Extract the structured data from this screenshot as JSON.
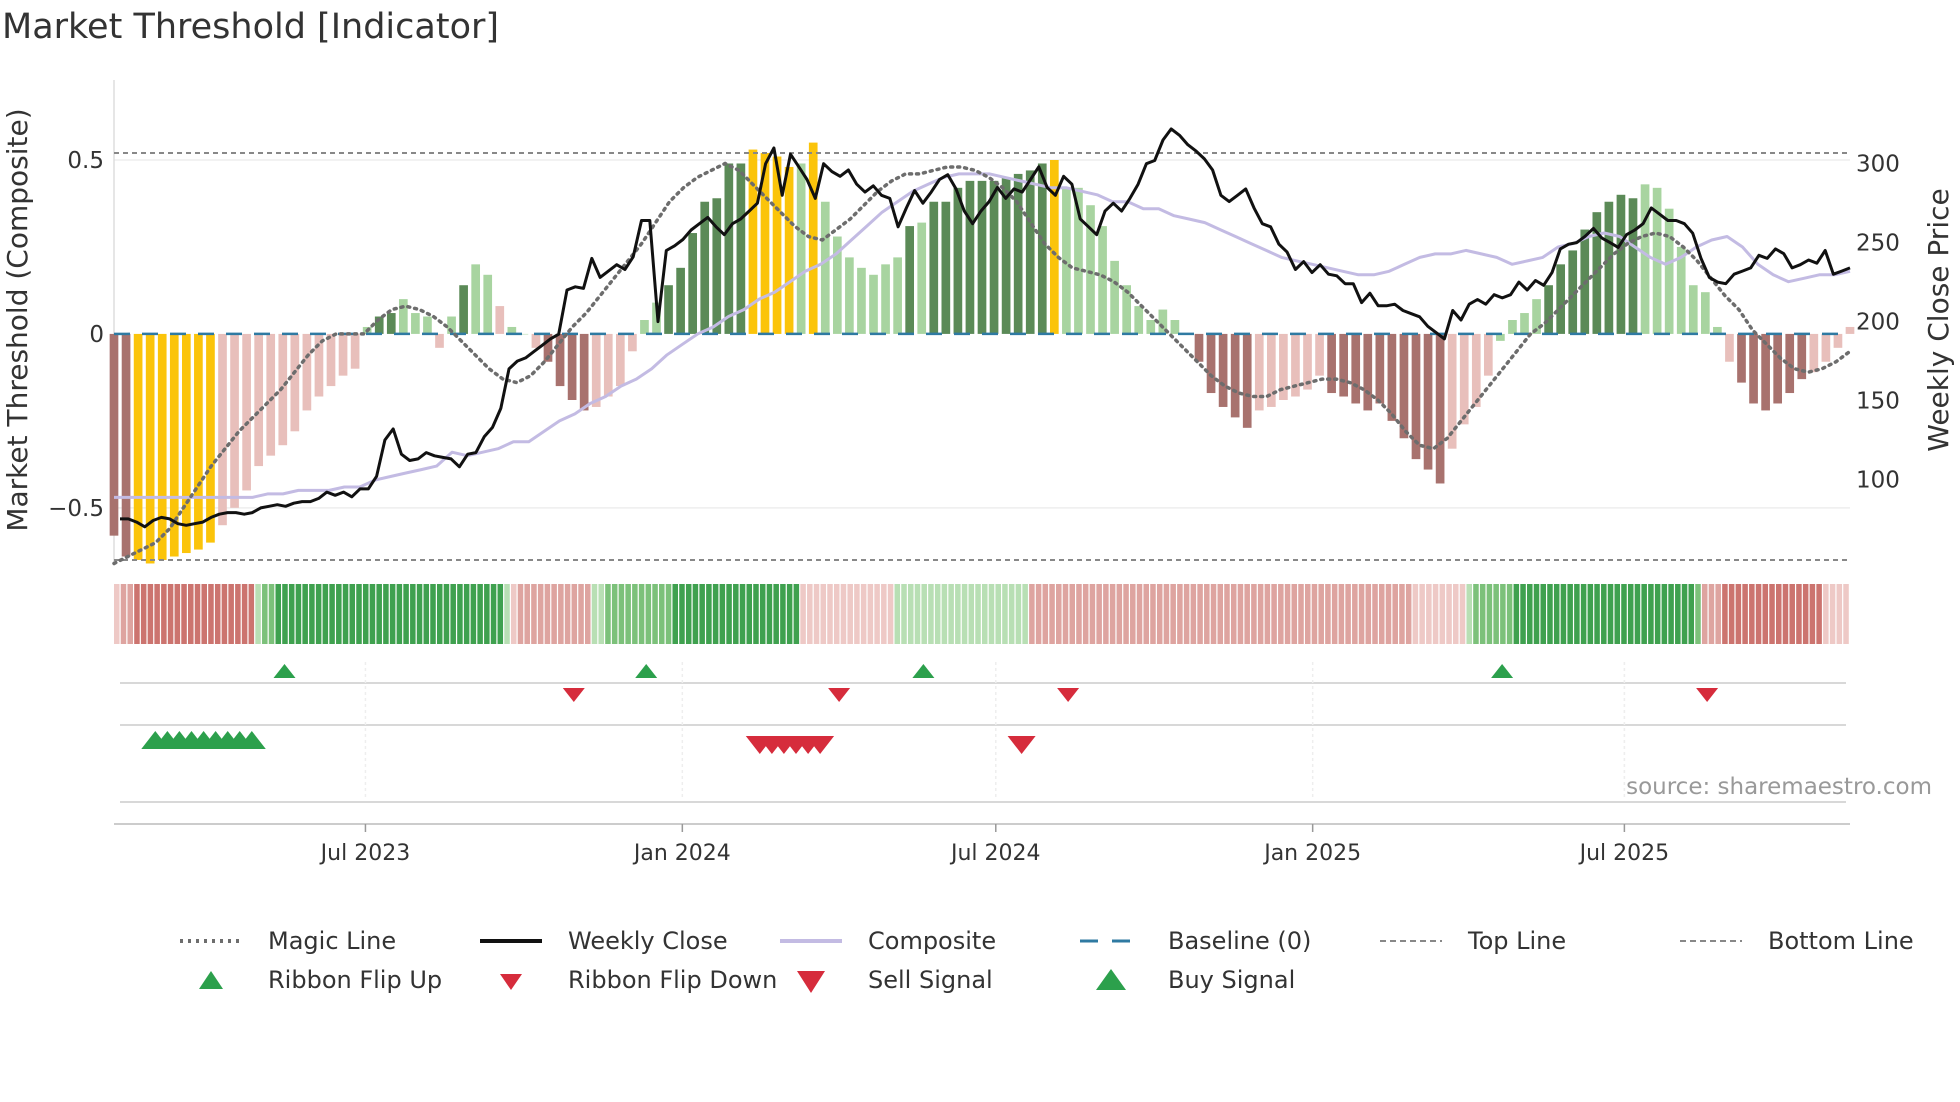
{
  "chart_data": {
    "type": "bar",
    "title": "Market Threshold [Indicator]",
    "ylabel_left": "Market Threshold (Composite)",
    "ylabel_right": "Weekly Close Price",
    "source": "source: sharemaestro.com",
    "x_start": "2023-02-05",
    "x_step_days": 7,
    "left_axis": {
      "ylim": [
        -0.65,
        0.73
      ],
      "ticks": [
        0.5,
        0,
        -0.5
      ],
      "tick_labels": [
        "0.5",
        "0",
        "−0.5"
      ]
    },
    "right_axis": {
      "ylim": [
        49,
        353
      ],
      "ticks": [
        300,
        250,
        200,
        150,
        100
      ],
      "tick_labels": [
        "300",
        "250",
        "200",
        "150",
        "100"
      ]
    },
    "x_ticks": [
      {
        "date": "2023-07-01",
        "label": "Jul 2023"
      },
      {
        "date": "2024-01-01",
        "label": "Jan 2024"
      },
      {
        "date": "2024-07-01",
        "label": "Jul 2024"
      },
      {
        "date": "2025-01-01",
        "label": "Jan 2025"
      },
      {
        "date": "2025-07-01",
        "label": "Jul 2025"
      }
    ],
    "top_line": 0.52,
    "bottom_line": -0.65,
    "baseline": 0,
    "composite_bars": [
      -0.58,
      -0.64,
      -0.65,
      -0.66,
      -0.65,
      -0.64,
      -0.63,
      -0.62,
      -0.6,
      -0.55,
      -0.5,
      -0.45,
      -0.38,
      -0.35,
      -0.32,
      -0.28,
      -0.22,
      -0.18,
      -0.15,
      -0.12,
      -0.1,
      0.02,
      0.05,
      0.06,
      0.1,
      0.06,
      0.05,
      -0.04,
      0.05,
      0.14,
      0.2,
      0.17,
      0.08,
      0.02,
      0.0,
      -0.04,
      -0.08,
      -0.15,
      -0.19,
      -0.22,
      -0.21,
      -0.18,
      -0.15,
      -0.05,
      0.04,
      0.09,
      0.14,
      0.19,
      0.29,
      0.38,
      0.39,
      0.49,
      0.49,
      0.53,
      0.52,
      0.51,
      0.48,
      0.49,
      0.55,
      0.38,
      0.28,
      0.22,
      0.19,
      0.17,
      0.2,
      0.22,
      0.31,
      0.32,
      0.38,
      0.38,
      0.42,
      0.44,
      0.44,
      0.44,
      0.45,
      0.46,
      0.47,
      0.49,
      0.5,
      0.42,
      0.42,
      0.37,
      0.31,
      0.21,
      0.14,
      0.08,
      0.04,
      0.07,
      0.04,
      0.0,
      -0.08,
      -0.17,
      -0.21,
      -0.24,
      -0.27,
      -0.22,
      -0.21,
      -0.19,
      -0.18,
      -0.16,
      -0.12,
      -0.17,
      -0.18,
      -0.2,
      -0.22,
      -0.2,
      -0.25,
      -0.3,
      -0.36,
      -0.39,
      -0.43,
      -0.33,
      -0.26,
      -0.21,
      -0.12,
      -0.02,
      0.04,
      0.06,
      0.1,
      0.14,
      0.2,
      0.24,
      0.3,
      0.35,
      0.38,
      0.4,
      0.39,
      0.43,
      0.42,
      0.36,
      0.25,
      0.14,
      0.12,
      0.02,
      -0.08,
      -0.14,
      -0.2,
      -0.22,
      -0.2,
      -0.17,
      -0.13,
      -0.11,
      -0.08,
      -0.04,
      0.02
    ],
    "bar_color_types": [
      2,
      2,
      5,
      5,
      5,
      5,
      5,
      5,
      5,
      3,
      3,
      3,
      3,
      3,
      3,
      3,
      3,
      3,
      3,
      3,
      3,
      4,
      1,
      1,
      4,
      4,
      4,
      3,
      4,
      1,
      4,
      4,
      3,
      4,
      4,
      3,
      2,
      2,
      2,
      2,
      3,
      3,
      3,
      3,
      4,
      4,
      1,
      1,
      1,
      1,
      1,
      1,
      1,
      5,
      5,
      5,
      5,
      4,
      5,
      4,
      4,
      4,
      4,
      4,
      4,
      4,
      1,
      4,
      1,
      1,
      1,
      1,
      1,
      1,
      1,
      1,
      1,
      1,
      5,
      4,
      4,
      4,
      4,
      4,
      4,
      4,
      4,
      4,
      4,
      4,
      2,
      2,
      2,
      2,
      2,
      3,
      3,
      3,
      3,
      3,
      3,
      2,
      2,
      2,
      2,
      2,
      2,
      2,
      2,
      2,
      2,
      3,
      3,
      3,
      3,
      4,
      4,
      4,
      4,
      1,
      1,
      1,
      1,
      1,
      1,
      1,
      1,
      4,
      4,
      4,
      4,
      4,
      4,
      4,
      3,
      2,
      2,
      2,
      2,
      2,
      2,
      3,
      3,
      3,
      3,
      4
    ],
    "magic_line": [
      -0.66,
      -0.64,
      -0.62,
      -0.6,
      -0.56,
      -0.5,
      -0.44,
      -0.38,
      -0.33,
      -0.28,
      -0.24,
      -0.2,
      -0.16,
      -0.11,
      -0.06,
      -0.02,
      0.0,
      0.0,
      0.0,
      0.04,
      0.07,
      0.08,
      0.07,
      0.05,
      0.02,
      -0.02,
      -0.06,
      -0.1,
      -0.13,
      -0.14,
      -0.12,
      -0.08,
      -0.03,
      0.02,
      0.06,
      0.11,
      0.16,
      0.21,
      0.26,
      0.32,
      0.38,
      0.42,
      0.45,
      0.47,
      0.49,
      0.47,
      0.43,
      0.39,
      0.35,
      0.31,
      0.28,
      0.27,
      0.3,
      0.33,
      0.37,
      0.41,
      0.44,
      0.46,
      0.46,
      0.47,
      0.48,
      0.48,
      0.47,
      0.45,
      0.42,
      0.38,
      0.32,
      0.26,
      0.22,
      0.19,
      0.18,
      0.17,
      0.15,
      0.12,
      0.08,
      0.04,
      0.0,
      -0.04,
      -0.08,
      -0.12,
      -0.15,
      -0.17,
      -0.18,
      -0.18,
      -0.16,
      -0.15,
      -0.14,
      -0.13,
      -0.13,
      -0.14,
      -0.16,
      -0.19,
      -0.23,
      -0.28,
      -0.32,
      -0.33,
      -0.3,
      -0.25,
      -0.2,
      -0.15,
      -0.1,
      -0.05,
      0.0,
      0.03,
      0.07,
      0.11,
      0.15,
      0.19,
      0.23,
      0.26,
      0.28,
      0.29,
      0.28,
      0.25,
      0.21,
      0.16,
      0.11,
      0.07,
      0.01,
      -0.03,
      -0.07,
      -0.1,
      -0.11,
      -0.1,
      -0.08,
      -0.05
    ],
    "magic_x_offset": 20,
    "weekly_close": [
      75,
      75,
      73,
      70,
      74,
      76,
      75,
      72,
      71,
      72,
      73,
      76,
      78,
      79,
      79,
      78,
      79,
      82,
      83,
      84,
      83,
      85,
      86,
      86,
      88,
      92,
      90,
      92,
      89,
      94,
      94,
      102,
      125,
      132,
      116,
      112,
      113,
      117,
      115,
      114,
      113,
      108,
      116,
      117,
      127,
      133,
      145,
      170,
      175,
      177,
      181,
      185,
      189,
      192,
      220,
      222,
      221,
      240,
      228,
      232,
      236,
      233,
      241,
      264,
      264,
      200,
      245,
      248,
      252,
      258,
      262,
      266,
      260,
      255,
      262,
      265,
      270,
      275,
      300,
      310,
      280,
      306,
      298,
      290,
      278,
      300,
      295,
      292,
      296,
      287,
      282,
      286,
      280,
      278,
      260,
      272,
      283,
      275,
      282,
      290,
      293,
      284,
      270,
      262,
      270,
      276,
      285,
      278,
      284,
      282,
      290,
      298,
      285,
      280,
      292,
      287,
      265,
      260,
      255,
      270,
      275,
      270,
      278,
      287,
      300,
      302,
      315,
      322,
      318,
      312,
      308,
      303,
      296,
      280,
      276,
      280,
      284,
      272,
      262,
      260,
      249,
      244,
      233,
      238,
      231,
      236,
      230,
      229,
      224,
      224,
      212,
      218,
      210,
      210,
      211,
      207,
      205,
      203,
      197,
      193,
      189,
      207,
      201,
      211,
      214,
      211,
      217,
      215,
      217,
      225,
      220,
      226,
      223,
      231,
      246,
      249,
      250,
      254,
      259,
      253,
      250,
      247,
      255,
      258,
      262,
      272,
      268,
      264,
      264,
      262,
      256,
      240,
      228,
      225,
      224,
      230,
      232,
      234,
      242,
      240,
      246,
      243,
      234,
      236,
      239,
      237,
      245,
      230,
      232,
      234
    ],
    "composite_line": [
      -0.47,
      -0.47,
      -0.47,
      -0.47,
      -0.47,
      -0.47,
      -0.47,
      -0.47,
      -0.47,
      -0.47,
      -0.46,
      -0.46,
      -0.45,
      -0.45,
      -0.45,
      -0.44,
      -0.44,
      -0.42,
      -0.41,
      -0.4,
      -0.39,
      -0.38,
      -0.34,
      -0.35,
      -0.34,
      -0.33,
      -0.31,
      -0.31,
      -0.28,
      -0.25,
      -0.23,
      -0.2,
      -0.18,
      -0.15,
      -0.13,
      -0.1,
      -0.06,
      -0.03,
      0.0,
      0.02,
      0.05,
      0.07,
      0.1,
      0.12,
      0.15,
      0.18,
      0.2,
      0.23,
      0.27,
      0.31,
      0.35,
      0.38,
      0.41,
      0.43,
      0.45,
      0.46,
      0.46,
      0.46,
      0.45,
      0.44,
      0.43,
      0.42,
      0.42,
      0.41,
      0.4,
      0.38,
      0.38,
      0.36,
      0.36,
      0.34,
      0.33,
      0.32,
      0.3,
      0.28,
      0.26,
      0.24,
      0.22,
      0.21,
      0.2,
      0.19,
      0.18,
      0.17,
      0.17,
      0.18,
      0.2,
      0.22,
      0.23,
      0.23,
      0.24,
      0.23,
      0.22,
      0.2,
      0.21,
      0.22,
      0.25,
      0.26,
      0.28,
      0.29,
      0.28,
      0.25,
      0.22,
      0.2,
      0.22,
      0.25,
      0.27,
      0.28,
      0.25,
      0.2,
      0.17,
      0.15,
      0.16,
      0.17,
      0.17,
      0.18
    ],
    "ribbon": [
      -1,
      -2,
      -2,
      -3,
      -3,
      -3,
      -3,
      -3,
      -3,
      -3,
      -3,
      -3,
      -3,
      -3,
      -3,
      -3,
      -3,
      -3,
      -3,
      -3,
      -3,
      1,
      2,
      2,
      3,
      3,
      3,
      3,
      3,
      3,
      3,
      3,
      3,
      3,
      3,
      3,
      3,
      3,
      3,
      3,
      3,
      3,
      3,
      3,
      3,
      3,
      3,
      3,
      3,
      3,
      3,
      3,
      3,
      3,
      3,
      3,
      3,
      3,
      1,
      -1,
      -2,
      -2,
      -2,
      -2,
      -2,
      -2,
      -2,
      -2,
      -2,
      -2,
      -2,
      1,
      1,
      2,
      2,
      2,
      2,
      2,
      2,
      2,
      2,
      2,
      2,
      3,
      3,
      3,
      3,
      3,
      3,
      3,
      3,
      3,
      3,
      3,
      3,
      3,
      3,
      3,
      3,
      3,
      3,
      3,
      -1,
      -1,
      -1,
      -1,
      -1,
      -1,
      -1,
      -1,
      -1,
      -1,
      -1,
      -1,
      -1,
      -1,
      1,
      1,
      1,
      1,
      1,
      1,
      1,
      1,
      1,
      1,
      1,
      1,
      1,
      1,
      1,
      1,
      1,
      1,
      1,
      1,
      -2,
      -2,
      -2,
      -2,
      -2,
      -2,
      -2,
      -2,
      -2,
      -2,
      -2,
      -2,
      -2,
      -2,
      -2,
      -2,
      -2,
      -2,
      -2,
      -2,
      -2,
      -2,
      -2,
      -2,
      -2,
      -2,
      -2,
      -2,
      -2,
      -2,
      -2,
      -2,
      -2,
      -2,
      -2,
      -2,
      -2,
      -2,
      -2,
      -2,
      -2,
      -2,
      -2,
      -2,
      -2,
      -2,
      -2,
      -2,
      -2,
      -2,
      -2,
      -2,
      -2,
      -2,
      -2,
      -2,
      -2,
      -1,
      -1,
      -1,
      -1,
      -1,
      -1,
      -1,
      -1,
      1,
      2,
      2,
      2,
      2,
      2,
      2,
      3,
      3,
      3,
      3,
      3,
      3,
      3,
      3,
      3,
      3,
      3,
      3,
      3,
      3,
      3,
      3,
      3,
      3,
      3,
      3,
      3,
      3,
      3,
      3,
      3,
      3,
      3,
      2,
      -2,
      -2,
      -2,
      -3,
      -3,
      -3,
      -3,
      -3,
      -3,
      -3,
      -3,
      -3,
      -3,
      -3,
      -3,
      -3,
      -3,
      -3,
      -1,
      -1,
      -1,
      -1
    ],
    "ribbon_flip_up_dates": [
      "2023-05-15",
      "2023-12-11",
      "2024-05-20",
      "2025-04-21"
    ],
    "ribbon_flip_down_dates": [
      "2023-10-30",
      "2024-04-01",
      "2024-08-12",
      "2025-08-18"
    ],
    "buy_signal_dates": [
      "2023-03-01",
      "2023-03-08",
      "2023-03-15",
      "2023-03-22",
      "2023-03-29",
      "2023-04-05",
      "2023-04-12",
      "2023-04-19",
      "2023-04-26"
    ],
    "sell_signal_dates": [
      "2024-02-15",
      "2024-02-22",
      "2024-02-29",
      "2024-03-07",
      "2024-03-14",
      "2024-03-21",
      "2024-07-16"
    ],
    "legend": [
      {
        "label": "Magic Line",
        "symbol": "dotted-line"
      },
      {
        "label": "Weekly Close",
        "symbol": "solid-line"
      },
      {
        "label": "Composite",
        "symbol": "lavender-line"
      },
      {
        "label": "Baseline (0)",
        "symbol": "dashed-line"
      },
      {
        "label": "Top Line",
        "symbol": "fine-dashed-line"
      },
      {
        "label": "Bottom Line",
        "symbol": "fine-dashed-line"
      },
      {
        "label": "Ribbon Flip Up",
        "symbol": "triangle-up"
      },
      {
        "label": "Ribbon Flip Down",
        "symbol": "triangle-down"
      },
      {
        "label": "Sell Signal",
        "symbol": "triangle-down-large"
      },
      {
        "label": "Buy Signal",
        "symbol": "triangle-up-large"
      }
    ]
  },
  "colors": {
    "dark_green": "#5b8a57",
    "light_green": "#a8d4a0",
    "dark_red": "#a8726e",
    "light_red": "#e8bfbb",
    "gold": "#fbc40a",
    "weekly_close": "#111111",
    "composite": "#c3bbe3",
    "magic": "#6d6d6d",
    "baseline": "#2f7aa2",
    "ref_line": "#888888",
    "signal_green": "#2ca04c",
    "signal_red": "#d62c3c",
    "ribbon_green": [
      "#b8dfb4",
      "#7cc17a",
      "#3fa14f"
    ],
    "ribbon_red": [
      "#eec9c6",
      "#dea4a0",
      "#cc746f"
    ]
  }
}
